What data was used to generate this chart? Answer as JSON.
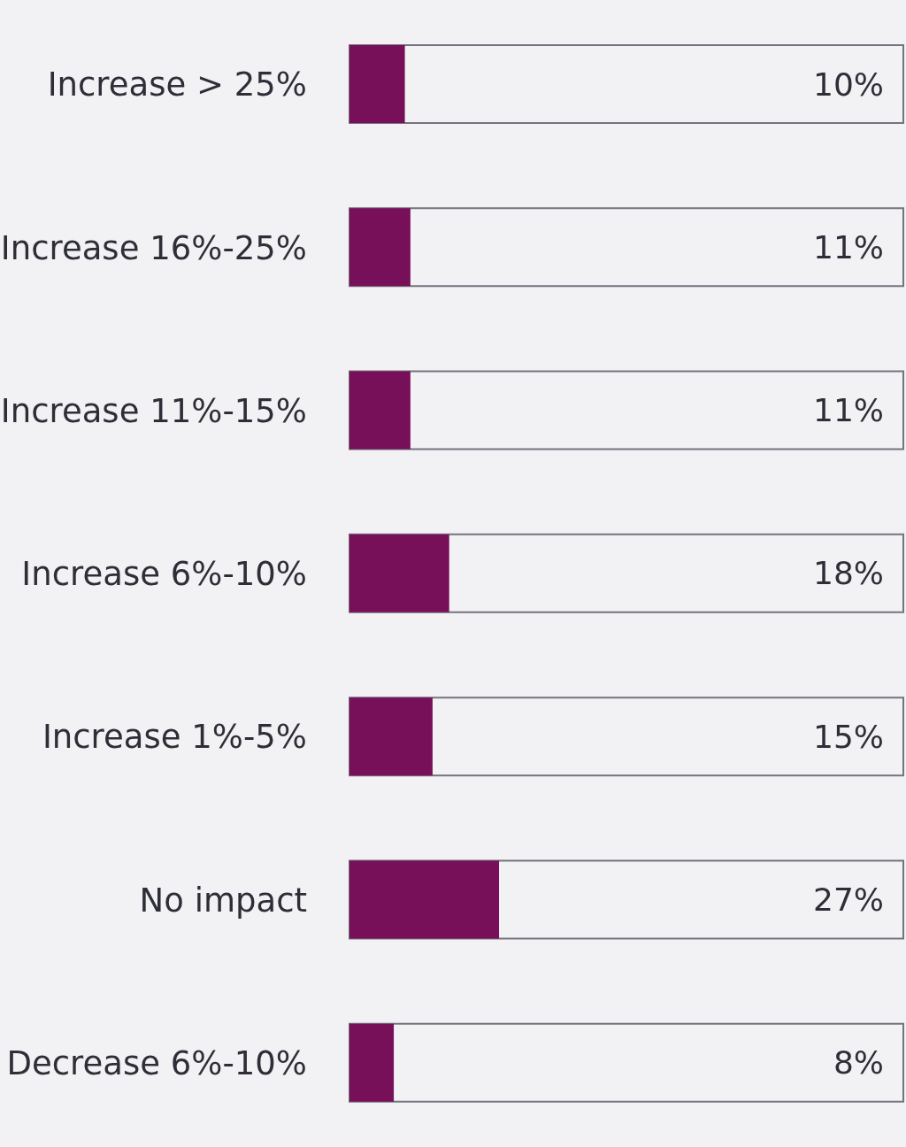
{
  "chart_data": {
    "type": "bar",
    "orientation": "horizontal",
    "categories": [
      "Increase > 25%",
      "Increase 16%-25%",
      "Increase 11%-15%",
      "Increase 6%-10%",
      "Increase 1%-5%",
      "No impact",
      "Decrease 6%-10%"
    ],
    "values": [
      10,
      11,
      11,
      18,
      15,
      27,
      8
    ],
    "value_labels": [
      "10%",
      "11%",
      "11%",
      "18%",
      "15%",
      "27%",
      "8%"
    ],
    "color": "#770f59",
    "xlim": [
      0,
      100
    ],
    "tick_labels": "y",
    "grid": false,
    "legend": false
  }
}
